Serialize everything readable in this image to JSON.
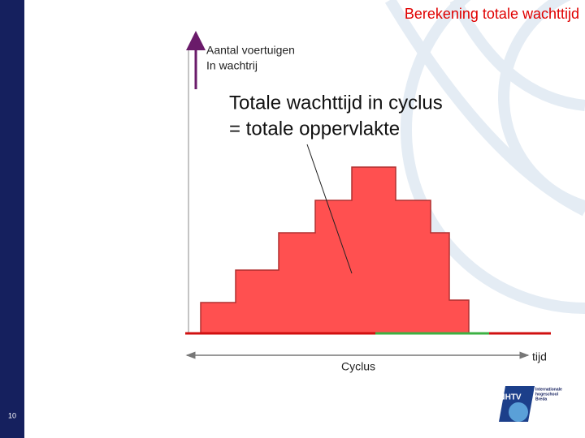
{
  "slide": {
    "title": "Berekening totale wachttijd",
    "y_axis_label": [
      "Aantal voertuigen",
      "In wachtrij"
    ],
    "annotation": [
      "Totale wachttijd in cyclus",
      "= totale oppervlakte"
    ],
    "cycle_label": "Cyclus",
    "x_axis_label": "tijd",
    "page_number": "10",
    "logo": {
      "abbr": "NHTV",
      "name": [
        "Internationale",
        "hogeschool",
        "Breda"
      ]
    }
  }
}
